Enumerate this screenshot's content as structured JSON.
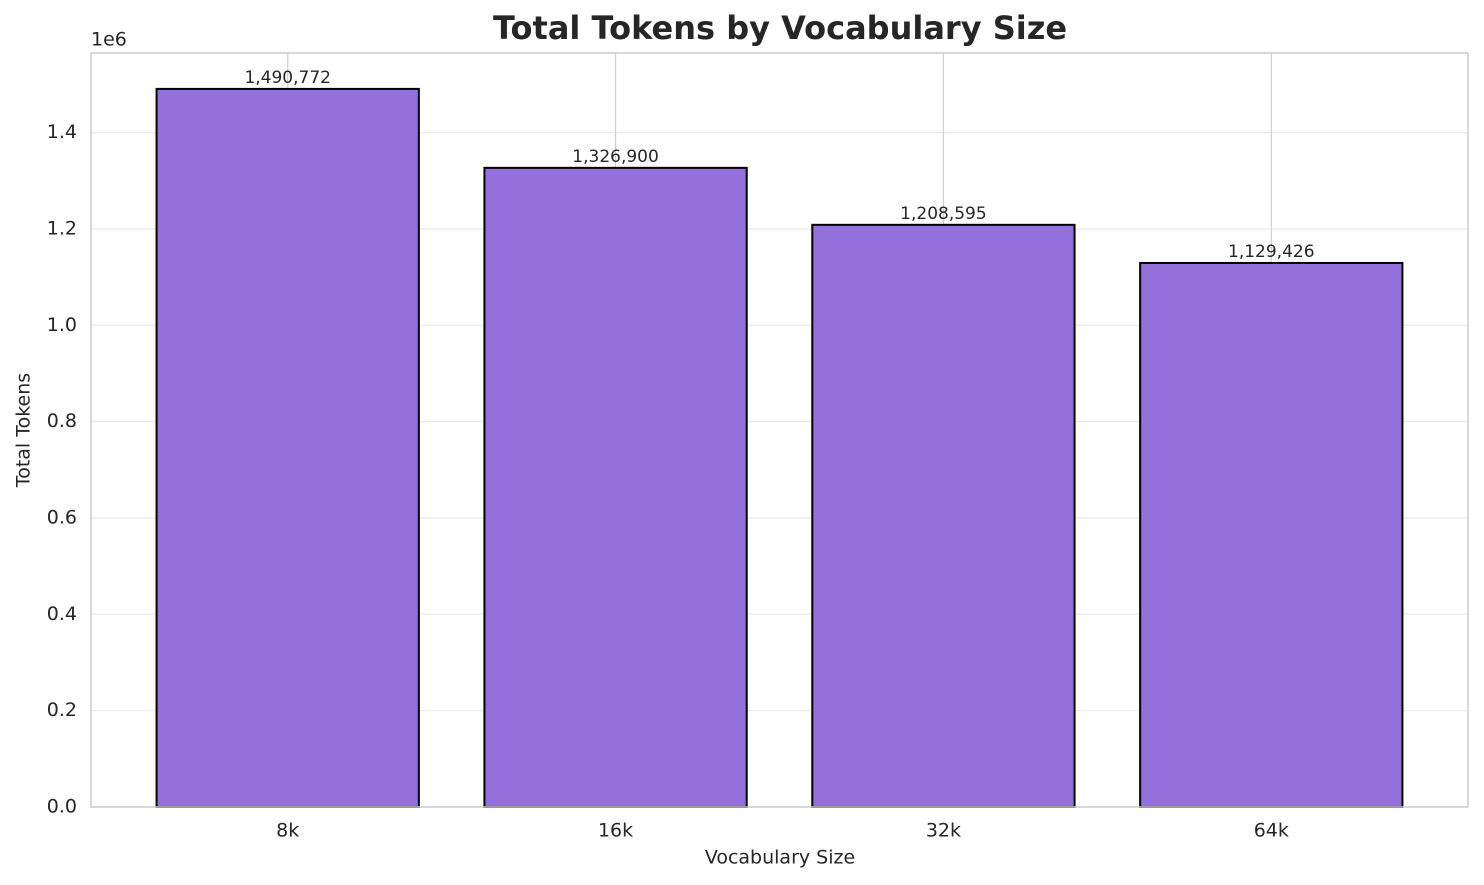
{
  "chart_data": {
    "type": "bar",
    "title": "Total Tokens by Vocabulary Size",
    "x_label": "Vocabulary Size",
    "y_label": "Total Tokens",
    "y_offset_label": "1e6",
    "categories": [
      "8k",
      "16k",
      "32k",
      "64k"
    ],
    "values": [
      1490772,
      1326900,
      1208595,
      1129426
    ],
    "value_labels": [
      "1,490,772",
      "1,326,900",
      "1,208,595",
      "1,129,426"
    ],
    "color": "#9370db",
    "edgecolor": "#000000",
    "ylim": [
      0,
      1565311
    ],
    "yticks": [
      {
        "value": 0,
        "label": "0.0"
      },
      {
        "value": 200000,
        "label": "0.2"
      },
      {
        "value": 400000,
        "label": "0.4"
      },
      {
        "value": 600000,
        "label": "0.6"
      },
      {
        "value": 800000,
        "label": "0.8"
      },
      {
        "value": 1000000,
        "label": "1.0"
      },
      {
        "value": 1200000,
        "label": "1.2"
      },
      {
        "value": 1400000,
        "label": "1.4"
      }
    ],
    "grid": true
  }
}
